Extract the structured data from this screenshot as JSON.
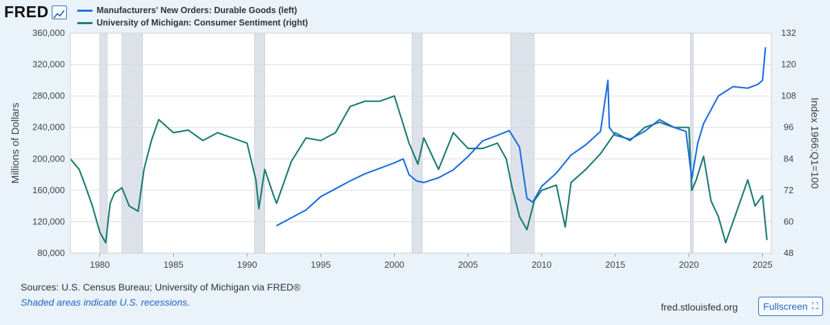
{
  "brand": {
    "logo_text": "FRED",
    "logo_icon": "line-chart-icon"
  },
  "sources": "Sources: U.S. Census Bureau; University of Michigan via FRED®",
  "recession_note": "Shaded areas indicate U.S. recessions.",
  "site": "fred.stlouisfed.org",
  "fullscreen": {
    "label": "Fullscreen",
    "icon": "expand-icon"
  },
  "colors": {
    "durable": "#1c6fe0",
    "sentiment": "#1e7c73",
    "recession": "#dde2ea",
    "grid": "#dcdcdc"
  },
  "chart_data": {
    "type": "line",
    "title": "",
    "legend_placement": "top-left",
    "grid": true,
    "xlim": [
      1978,
      2025.6
    ],
    "x_ticks": [
      1980,
      1985,
      1990,
      1995,
      2000,
      2005,
      2010,
      2015,
      2020,
      2025
    ],
    "y_left": {
      "label": "Millions of Dollars",
      "range": [
        80000,
        360000
      ],
      "ticks": [
        "80,000",
        "120,000",
        "160,000",
        "200,000",
        "240,000",
        "280,000",
        "320,000",
        "360,000"
      ]
    },
    "y_right": {
      "label": "Index 1966:Q1=100",
      "range": [
        48,
        132
      ],
      "ticks": [
        "48",
        "60",
        "72",
        "84",
        "96",
        "108",
        "120",
        "132"
      ]
    },
    "recessions": [
      [
        1980.0,
        1980.5
      ],
      [
        1981.5,
        1982.9
      ],
      [
        1990.5,
        1991.2
      ],
      [
        2001.2,
        2001.9
      ],
      [
        2007.9,
        2009.5
      ],
      [
        2020.1,
        2020.3
      ]
    ],
    "series": [
      {
        "name": "Manufacturers' New Orders: Durable Goods (left)",
        "axis": "left",
        "x": [
          1992.0,
          1993.0,
          1994.0,
          1995.0,
          1996.0,
          1997.0,
          1998.0,
          1999.0,
          2000.0,
          2000.6,
          2001.0,
          2001.5,
          2002.0,
          2003.0,
          2004.0,
          2005.0,
          2006.0,
          2007.0,
          2007.8,
          2008.5,
          2009.0,
          2009.4,
          2010.0,
          2011.0,
          2012.0,
          2013.0,
          2014.0,
          2014.5,
          2014.6,
          2015.0,
          2016.0,
          2017.0,
          2018.0,
          2019.0,
          2019.8,
          2020.2,
          2020.6,
          2021.0,
          2022.0,
          2023.0,
          2024.0,
          2024.7,
          2025.0,
          2025.2
        ],
        "y": [
          115000,
          125000,
          135000,
          152000,
          162000,
          172000,
          181000,
          188000,
          195000,
          200000,
          180000,
          172000,
          170000,
          176000,
          186000,
          203000,
          223000,
          230000,
          236000,
          215000,
          150000,
          145000,
          165000,
          182000,
          205000,
          218000,
          235000,
          300000,
          240000,
          230000,
          225000,
          235000,
          250000,
          240000,
          235000,
          175000,
          220000,
          245000,
          280000,
          292000,
          290000,
          295000,
          300000,
          342000
        ]
      },
      {
        "name": "University of Michigan: Consumer Sentiment (right)",
        "axis": "right",
        "x": [
          1978.0,
          1978.6,
          1979.0,
          1979.5,
          1980.0,
          1980.4,
          1980.7,
          1981.0,
          1981.5,
          1982.0,
          1982.6,
          1983.0,
          1983.5,
          1984.0,
          1985.0,
          1986.0,
          1987.0,
          1988.0,
          1989.0,
          1990.0,
          1990.6,
          1990.8,
          1991.2,
          1991.8,
          1992.0,
          1993.0,
          1994.0,
          1995.0,
          1996.0,
          1997.0,
          1998.0,
          1999.0,
          2000.0,
          2001.0,
          2001.6,
          2002.0,
          2003.0,
          2004.0,
          2005.0,
          2006.0,
          2007.0,
          2007.6,
          2008.0,
          2008.5,
          2009.0,
          2009.5,
          2010.0,
          2011.0,
          2011.6,
          2012.0,
          2013.0,
          2014.0,
          2015.0,
          2016.0,
          2017.0,
          2018.0,
          2019.0,
          2020.0,
          2020.2,
          2020.5,
          2021.0,
          2021.5,
          2022.0,
          2022.5,
          2023.0,
          2024.0,
          2024.5,
          2025.0,
          2025.3
        ],
        "y": [
          84,
          80,
          74,
          66,
          56,
          52,
          67,
          71,
          73,
          66,
          64,
          80,
          91,
          99,
          94,
          95,
          91,
          94,
          92,
          90,
          76,
          65,
          80,
          70,
          67,
          83,
          92,
          91,
          94,
          104,
          106,
          106,
          108,
          90,
          82,
          92,
          80,
          94,
          88,
          88,
          90,
          84,
          73,
          62,
          57,
          68,
          72,
          74,
          58,
          75,
          80,
          86,
          94,
          91,
          96,
          98,
          96,
          96,
          72,
          76,
          85,
          68,
          62,
          52,
          60,
          76,
          66,
          70,
          53
        ]
      }
    ]
  }
}
